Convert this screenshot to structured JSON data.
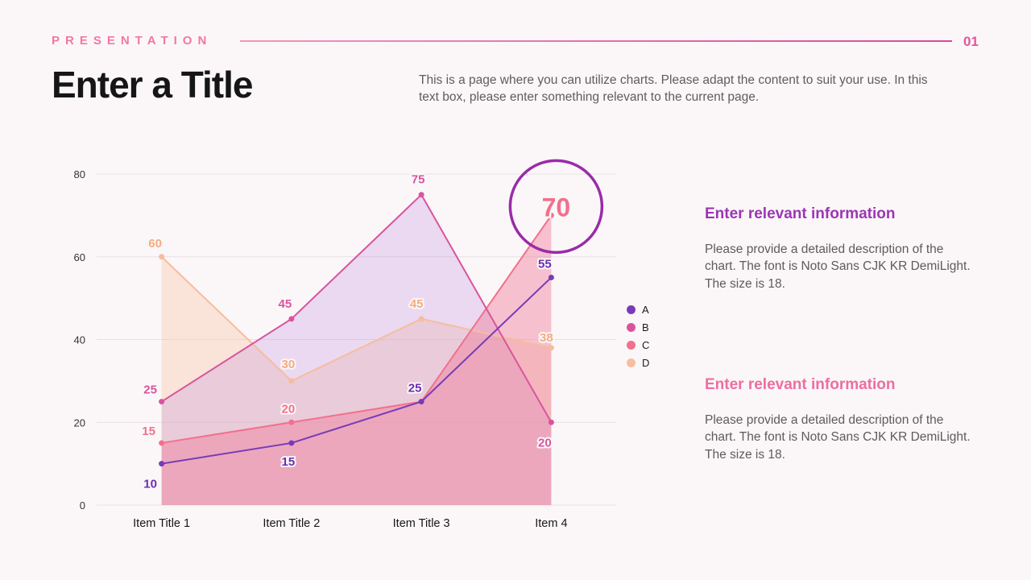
{
  "header": {
    "brand": "PRESENTATION",
    "page_number": "01"
  },
  "title": "Enter a Title",
  "subtitle": "This is a page where you can utilize charts. Please adapt the content to suit your use. In this text box, please enter something relevant to the current page.",
  "right_panel": {
    "sections": [
      {
        "heading": "Enter relevant information",
        "body": "Please provide a detailed description of the chart. The font is Noto Sans CJK KR DemiLight. The size is 18."
      },
      {
        "heading": "Enter relevant information",
        "body": "Please provide a detailed description of the chart. The font is Noto Sans CJK KR DemiLight. The size is 18."
      }
    ]
  },
  "colors": {
    "accent_pink": "#f277a6",
    "accent_purple": "#9c35b5",
    "background": "#fbf7f8"
  },
  "chart_data": {
    "type": "line",
    "categories": [
      "Item Title 1",
      "Item Title 2",
      "Item Title 3",
      "Item 4"
    ],
    "series": [
      {
        "name": "A",
        "color": "#7a3ab8",
        "label_color": "#6c2fae",
        "values": [
          10,
          15,
          25,
          55
        ],
        "area": false,
        "fill": null
      },
      {
        "name": "B",
        "color": "#d9549e",
        "label_color": "#d9549e",
        "values": [
          25,
          45,
          75,
          20
        ],
        "area": true,
        "fill": "rgba(190,140,220,0.28)"
      },
      {
        "name": "C",
        "color": "#f1718c",
        "label_color": "#f1718c",
        "values": [
          15,
          20,
          25,
          70
        ],
        "area": true,
        "fill": "rgba(240,125,155,0.45)"
      },
      {
        "name": "D",
        "color": "#f6bd9e",
        "label_color": "#f5ab82",
        "values": [
          60,
          30,
          45,
          38
        ],
        "area": true,
        "fill": "rgba(249,199,173,0.42)"
      }
    ],
    "ylim": [
      0,
      80
    ],
    "yticks": [
      0,
      20,
      40,
      60,
      80
    ],
    "grid": true,
    "legend_position": "right",
    "highlight": {
      "series": "C",
      "index": 3,
      "value": 70,
      "circle_color": "#992baa",
      "value_color": "#f1718c"
    }
  }
}
